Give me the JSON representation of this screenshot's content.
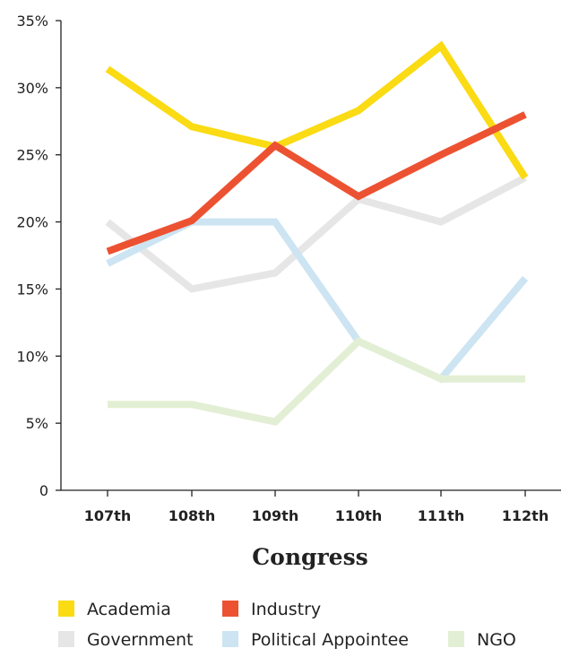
{
  "chart_data": {
    "type": "line",
    "categories": [
      "107th",
      "108th",
      "109th",
      "110th",
      "111th",
      "112th"
    ],
    "xlabel": "Congress",
    "ylabel": "",
    "ylim": [
      0,
      35
    ],
    "yticks": [
      "0",
      "5%",
      "10%",
      "15%",
      "20%",
      "25%",
      "30%",
      "35%"
    ],
    "ytick_values": [
      0,
      5,
      10,
      15,
      20,
      25,
      30,
      35
    ],
    "grid": false,
    "legend_position": "bottom",
    "series": [
      {
        "name": "Government",
        "color": "#e6e6e6",
        "values": [
          20,
          15,
          16.2,
          21.7,
          20,
          23.3
        ]
      },
      {
        "name": "Political Appointee",
        "color": "#cde4f2",
        "values": [
          16.9,
          20,
          20,
          11.1,
          8.3,
          15.8
        ]
      },
      {
        "name": "NGO",
        "color": "#e3efd4",
        "values": [
          6.4,
          6.4,
          5.1,
          11.1,
          8.3,
          8.3
        ]
      },
      {
        "name": "Academia",
        "color": "#fadb14",
        "values": [
          31.4,
          27.1,
          25.6,
          28.3,
          33.1,
          23.3
        ]
      },
      {
        "name": "Industry",
        "color": "#ec5232",
        "values": [
          17.8,
          20.1,
          25.7,
          21.9,
          25,
          28
        ]
      }
    ],
    "legend": [
      {
        "name": "Academia",
        "color": "#fadb14"
      },
      {
        "name": "Industry",
        "color": "#ec5232"
      },
      {
        "name": "Government",
        "color": "#e6e6e6"
      },
      {
        "name": "Political Appointee",
        "color": "#cde4f2"
      },
      {
        "name": "NGO",
        "color": "#e3efd4"
      }
    ]
  }
}
